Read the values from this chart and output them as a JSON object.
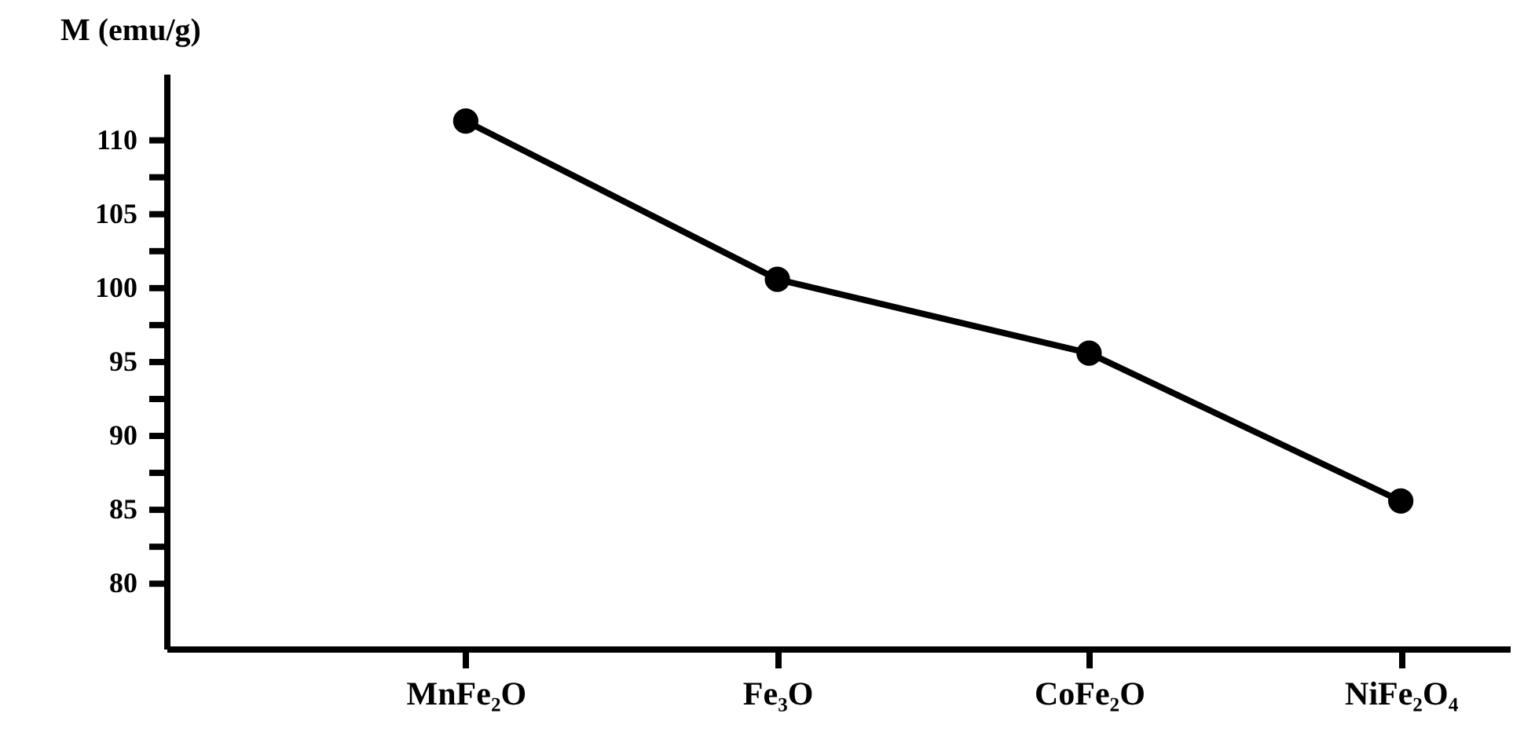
{
  "chart_data": {
    "type": "line",
    "ylabel": "M (emu/g)",
    "categories": [
      "MnFe₂O",
      "Fe₃O",
      "CoFe₂O",
      "NiFe₂O₄"
    ],
    "series": [
      {
        "color": "#000000",
        "values": [
          111.3,
          100.6,
          95.6,
          85.6
        ]
      }
    ],
    "ylim": [
      75.6,
      114.5
    ],
    "yticks": [
      80,
      {
        "value": 82.5,
        "label": null
      },
      85,
      {
        "value": 87.5,
        "label": null
      },
      90,
      {
        "value": 92.5,
        "label": null
      },
      95,
      {
        "value": 97.5,
        "label": null
      },
      100,
      {
        "value": 102.5,
        "label": null
      },
      105,
      {
        "value": 107.5,
        "label": null
      },
      110
    ],
    "marker": "circle",
    "line_style": "solid",
    "grid": false,
    "legend": false
  }
}
